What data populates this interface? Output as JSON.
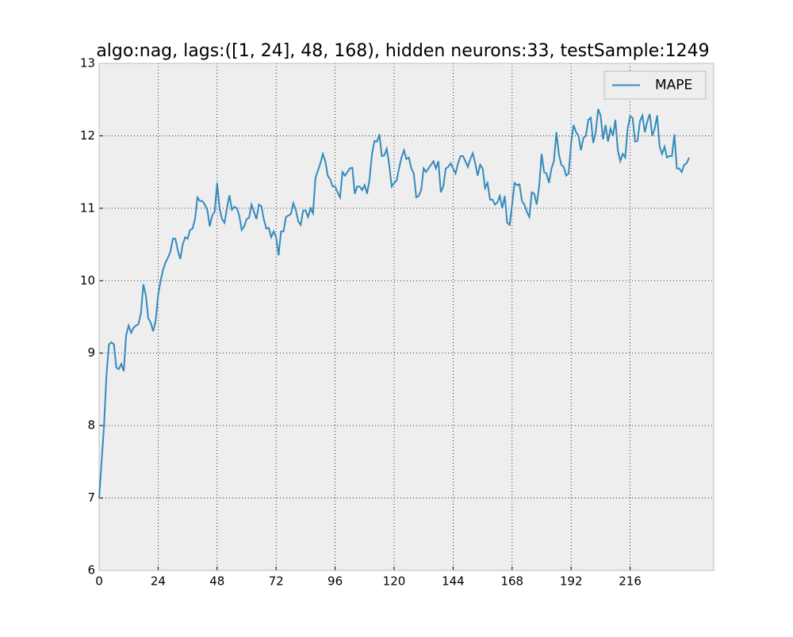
{
  "chart_data": {
    "type": "line",
    "title": "algo:nag, lags:([1, 24], 48, 168), hidden neurons:33, testSample:1249",
    "x": [
      0,
      1,
      2,
      3,
      4,
      5,
      6,
      7,
      8,
      9,
      10,
      11,
      12,
      13,
      14,
      15,
      16,
      17,
      18,
      19,
      20,
      21,
      22,
      23,
      24,
      25,
      26,
      27,
      28,
      29,
      30,
      31,
      32,
      33,
      34,
      35,
      36,
      37,
      38,
      39,
      40,
      41,
      42,
      43,
      44,
      45,
      46,
      47,
      48,
      49,
      50,
      51,
      52,
      53,
      54,
      55,
      56,
      57,
      58,
      59,
      60,
      61,
      62,
      63,
      64,
      65,
      66,
      67,
      68,
      69,
      70,
      71,
      72,
      73,
      74,
      75,
      76,
      77,
      78,
      79,
      80,
      81,
      82,
      83,
      84,
      85,
      86,
      87,
      88,
      89,
      90,
      91,
      92,
      93,
      94,
      95,
      96,
      97,
      98,
      99,
      100,
      101,
      102,
      103,
      104,
      105,
      106,
      107,
      108,
      109,
      110,
      111,
      112,
      113,
      114,
      115,
      116,
      117,
      118,
      119,
      120,
      121,
      122,
      123,
      124,
      125,
      126,
      127,
      128,
      129,
      130,
      131,
      132,
      133,
      134,
      135,
      136,
      137,
      138,
      139,
      140,
      141,
      142,
      143,
      144,
      145,
      146,
      147,
      148,
      149,
      150,
      151,
      152,
      153,
      154,
      155,
      156,
      157,
      158,
      159,
      160,
      161,
      162,
      163,
      164,
      165,
      166,
      167,
      168,
      169,
      170,
      171,
      172,
      173,
      174,
      175,
      176,
      177,
      178,
      179,
      180,
      181,
      182,
      183,
      184,
      185,
      186,
      187,
      188,
      189,
      190,
      191,
      192,
      193,
      194,
      195,
      196,
      197,
      198,
      199,
      200,
      201,
      202,
      203,
      204,
      205,
      206,
      207,
      208,
      209,
      210,
      211,
      212,
      213,
      214,
      215,
      216,
      217,
      218,
      219,
      220,
      221,
      222,
      223,
      224,
      225,
      226,
      227,
      228,
      229,
      230,
      231,
      232,
      233,
      234,
      235,
      236,
      237,
      238,
      239,
      240
    ],
    "series": [
      {
        "name": "MAPE",
        "color": "#348abd",
        "values": [
          7.0,
          7.5,
          8.0,
          8.7,
          9.12,
          9.15,
          9.12,
          8.8,
          8.78,
          8.85,
          8.75,
          9.25,
          9.38,
          9.28,
          9.35,
          9.38,
          9.4,
          9.55,
          9.95,
          9.8,
          9.48,
          9.42,
          9.3,
          9.45,
          9.8,
          10.0,
          10.15,
          10.25,
          10.32,
          10.4,
          10.58,
          10.58,
          10.42,
          10.3,
          10.5,
          10.6,
          10.58,
          10.7,
          10.72,
          10.85,
          11.15,
          11.1,
          11.1,
          11.05,
          10.98,
          10.75,
          10.9,
          10.95,
          11.35,
          11.0,
          10.85,
          10.8,
          11.0,
          11.18,
          10.98,
          11.02,
          11.0,
          10.9,
          10.7,
          10.75,
          10.85,
          10.87,
          11.05,
          10.95,
          10.85,
          11.05,
          11.03,
          10.85,
          10.72,
          10.73,
          10.6,
          10.68,
          10.6,
          10.35,
          10.68,
          10.68,
          10.88,
          10.9,
          10.92,
          11.07,
          10.98,
          10.82,
          10.77,
          10.97,
          10.97,
          10.88,
          11.0,
          10.93,
          11.42,
          11.52,
          11.62,
          11.75,
          11.65,
          11.45,
          11.4,
          11.3,
          11.3,
          11.22,
          11.15,
          11.5,
          11.45,
          11.5,
          11.55,
          11.56,
          11.2,
          11.3,
          11.3,
          11.25,
          11.32,
          11.2,
          11.4,
          11.75,
          11.93,
          11.92,
          12.02,
          11.72,
          11.73,
          11.82,
          11.6,
          11.3,
          11.35,
          11.38,
          11.55,
          11.7,
          11.8,
          11.68,
          11.7,
          11.55,
          11.48,
          11.15,
          11.17,
          11.25,
          11.55,
          11.5,
          11.55,
          11.6,
          11.65,
          11.55,
          11.65,
          11.22,
          11.3,
          11.55,
          11.57,
          11.62,
          11.55,
          11.48,
          11.62,
          11.72,
          11.72,
          11.65,
          11.57,
          11.68,
          11.76,
          11.62,
          11.45,
          11.6,
          11.55,
          11.28,
          11.35,
          11.12,
          11.12,
          11.05,
          11.08,
          11.17,
          11.0,
          11.17,
          10.8,
          10.77,
          11.05,
          11.35,
          11.32,
          11.33,
          11.1,
          11.05,
          10.95,
          10.88,
          11.22,
          11.2,
          11.05,
          11.3,
          11.75,
          11.5,
          11.48,
          11.35,
          11.55,
          11.65,
          12.05,
          11.75,
          11.6,
          11.57,
          11.45,
          11.48,
          11.9,
          12.15,
          12.05,
          12.0,
          11.8,
          11.97,
          12.0,
          12.22,
          12.25,
          11.9,
          12.05,
          12.37,
          12.28,
          11.95,
          12.15,
          11.92,
          12.1,
          12.0,
          12.22,
          11.8,
          11.65,
          11.75,
          11.7,
          12.1,
          12.27,
          12.25,
          11.92,
          11.93,
          12.2,
          12.28,
          12.05,
          12.2,
          12.3,
          12.0,
          12.1,
          12.28,
          11.85,
          11.75,
          11.85,
          11.7,
          11.72,
          11.72,
          12.02,
          11.55,
          11.55,
          11.5,
          11.6,
          11.62,
          11.7
        ]
      }
    ],
    "xlim": [
      0,
      250
    ],
    "xticks": [
      0,
      24,
      48,
      72,
      96,
      120,
      144,
      168,
      192,
      216
    ],
    "ylim": [
      6,
      13
    ],
    "yticks": [
      6,
      7,
      8,
      9,
      10,
      11,
      12,
      13
    ],
    "grid": true,
    "legend": "upper right"
  }
}
